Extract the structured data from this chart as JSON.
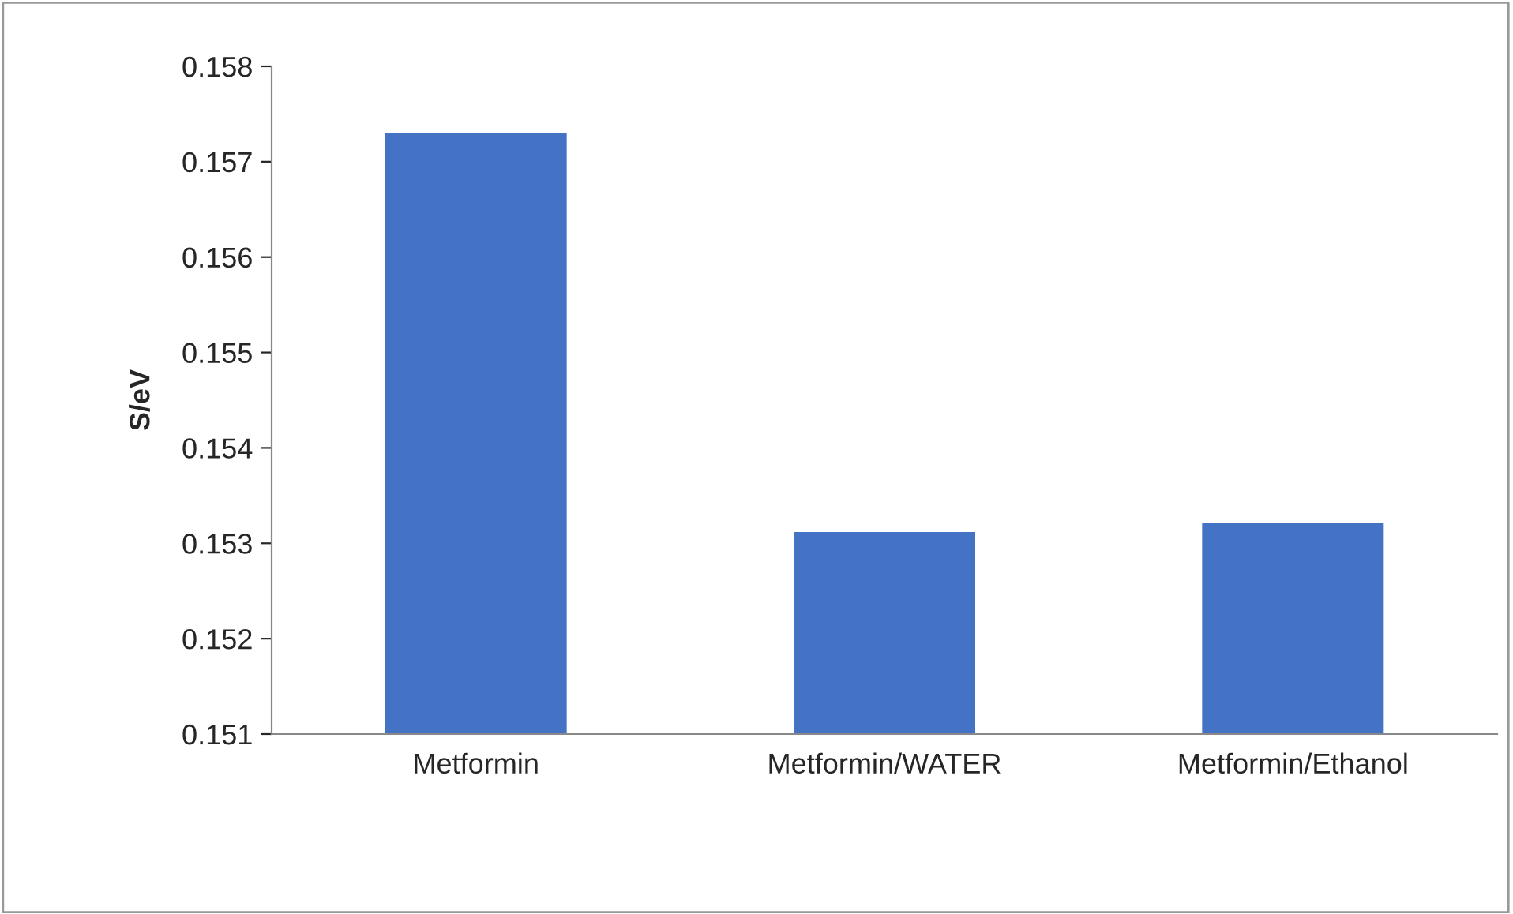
{
  "chart_data": {
    "type": "bar",
    "ylabel": "S/eV",
    "categories": [
      "Metformin",
      "Metformin/WATER",
      "Metformin/Ethanol"
    ],
    "values": [
      0.15731,
      0.15313,
      0.15323
    ],
    "color": "#4472c4",
    "ylim": [
      0.151,
      0.158
    ],
    "yticks": [
      0.151,
      0.152,
      0.153,
      0.154,
      0.155,
      0.156,
      0.157,
      0.158
    ],
    "grid": false
  }
}
